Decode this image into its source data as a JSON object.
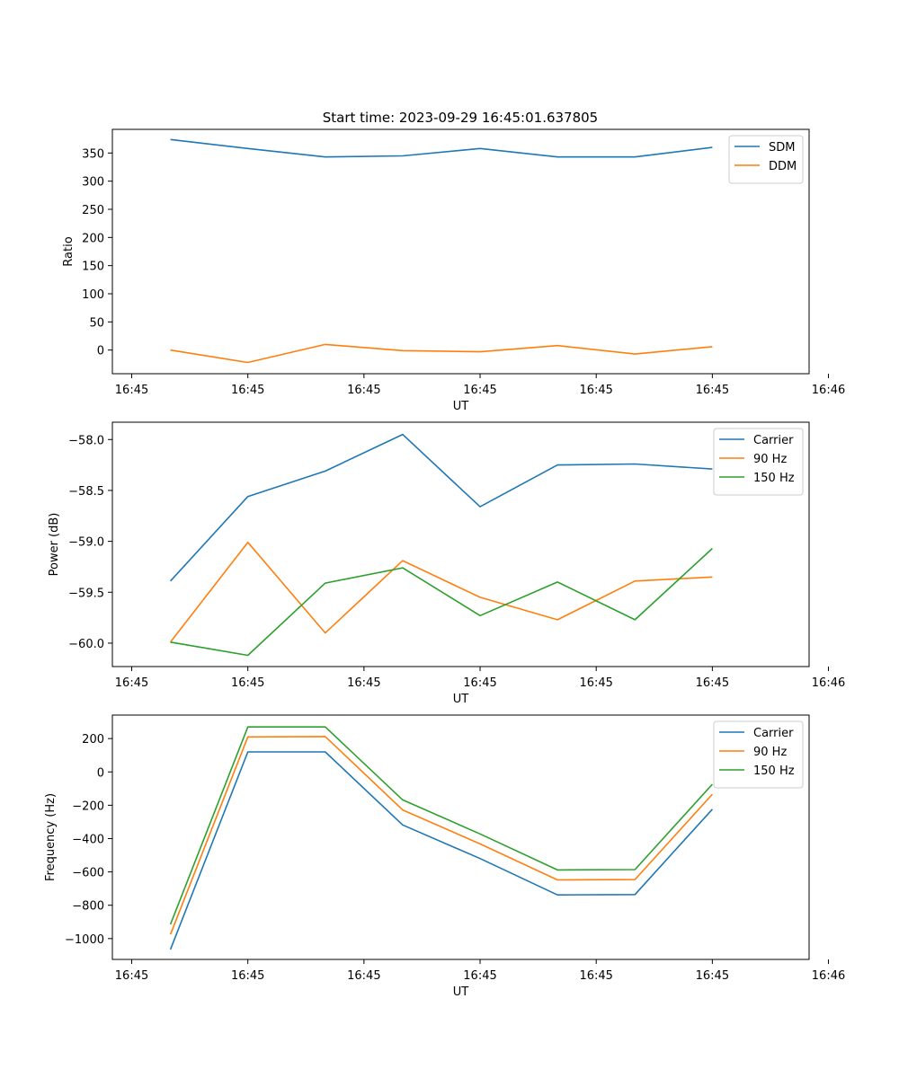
{
  "figure": {
    "title": "Start time: 2023-09-29 16:45:01.637805"
  },
  "chart_data": [
    {
      "type": "line",
      "title": "Start time: 2023-09-29 16:45:01.637805",
      "xlabel": "UT",
      "ylabel": "Ratio",
      "x": [
        1,
        2,
        3,
        4,
        5,
        6,
        7,
        8
      ],
      "xlim": [
        0.25,
        9.25
      ],
      "xticks": [
        0.5,
        2,
        3.5,
        5,
        6.5,
        8,
        9.5
      ],
      "xticklabels": [
        "16:45",
        "16:45",
        "16:45",
        "16:45",
        "16:45",
        "16:45",
        "16:46"
      ],
      "ylim": [
        -42,
        392
      ],
      "yticks": [
        0,
        50,
        100,
        150,
        200,
        250,
        300,
        350
      ],
      "yticklabels": [
        "0",
        "50",
        "100",
        "150",
        "200",
        "250",
        "300",
        "350"
      ],
      "legend": "top-right",
      "series": [
        {
          "name": "SDM",
          "color": "#1f77b4",
          "values": [
            374,
            358,
            343,
            345,
            358,
            343,
            343,
            360
          ]
        },
        {
          "name": "DDM",
          "color": "#ff7f0e",
          "values": [
            0,
            -22,
            10,
            -1,
            -3,
            8,
            -7,
            6
          ]
        }
      ]
    },
    {
      "type": "line",
      "xlabel": "UT",
      "ylabel": "Power (dB)",
      "x": [
        1,
        2,
        3,
        4,
        5,
        6,
        7,
        8
      ],
      "xlim": [
        0.25,
        9.25
      ],
      "xticks": [
        0.5,
        2,
        3.5,
        5,
        6.5,
        8,
        9.5
      ],
      "xticklabels": [
        "16:45",
        "16:45",
        "16:45",
        "16:45",
        "16:45",
        "16:45",
        "16:46"
      ],
      "ylim": [
        -60.23,
        -57.83
      ],
      "yticks": [
        -58.0,
        -58.5,
        -59.0,
        -59.5,
        -60.0
      ],
      "yticklabels": [
        "−58.0",
        "−58.5",
        "−59.0",
        "−59.5",
        "−60.0"
      ],
      "legend": "top-right",
      "series": [
        {
          "name": "Carrier",
          "color": "#1f77b4",
          "values": [
            -59.39,
            -58.56,
            -58.31,
            -57.95,
            -58.66,
            -58.25,
            -58.24,
            -58.29
          ]
        },
        {
          "name": "90 Hz",
          "color": "#ff7f0e",
          "values": [
            -59.99,
            -59.01,
            -59.9,
            -59.19,
            -59.55,
            -59.77,
            -59.39,
            -59.35
          ]
        },
        {
          "name": "150 Hz",
          "color": "#2ca02c",
          "values": [
            -59.99,
            -60.12,
            -59.41,
            -59.26,
            -59.73,
            -59.4,
            -59.77,
            -59.07
          ]
        }
      ]
    },
    {
      "type": "line",
      "xlabel": "UT",
      "ylabel": "Frequency (Hz)",
      "x": [
        1,
        2,
        3,
        4,
        5,
        6,
        7,
        8
      ],
      "xlim": [
        0.25,
        9.25
      ],
      "xticks": [
        0.5,
        2,
        3.5,
        5,
        6.5,
        8,
        9.5
      ],
      "xticklabels": [
        "16:45",
        "16:45",
        "16:45",
        "16:45",
        "16:45",
        "16:45",
        "16:46"
      ],
      "ylim": [
        -1125,
        341
      ],
      "yticks": [
        200,
        0,
        -200,
        -400,
        -600,
        -800,
        -1000
      ],
      "yticklabels": [
        "200",
        "0",
        "−200",
        "−400",
        "−600",
        "−800",
        "−1000"
      ],
      "legend": "top-right",
      "series": [
        {
          "name": "Carrier",
          "color": "#1f77b4",
          "values": [
            -1065,
            120,
            120,
            -318,
            -520,
            -738,
            -736,
            -224
          ]
        },
        {
          "name": "90 Hz",
          "color": "#ff7f0e",
          "values": [
            -975,
            210,
            212,
            -228,
            -432,
            -648,
            -646,
            -134
          ]
        },
        {
          "name": "150 Hz",
          "color": "#2ca02c",
          "values": [
            -915,
            270,
            270,
            -168,
            -372,
            -588,
            -586,
            -74
          ]
        }
      ]
    }
  ]
}
